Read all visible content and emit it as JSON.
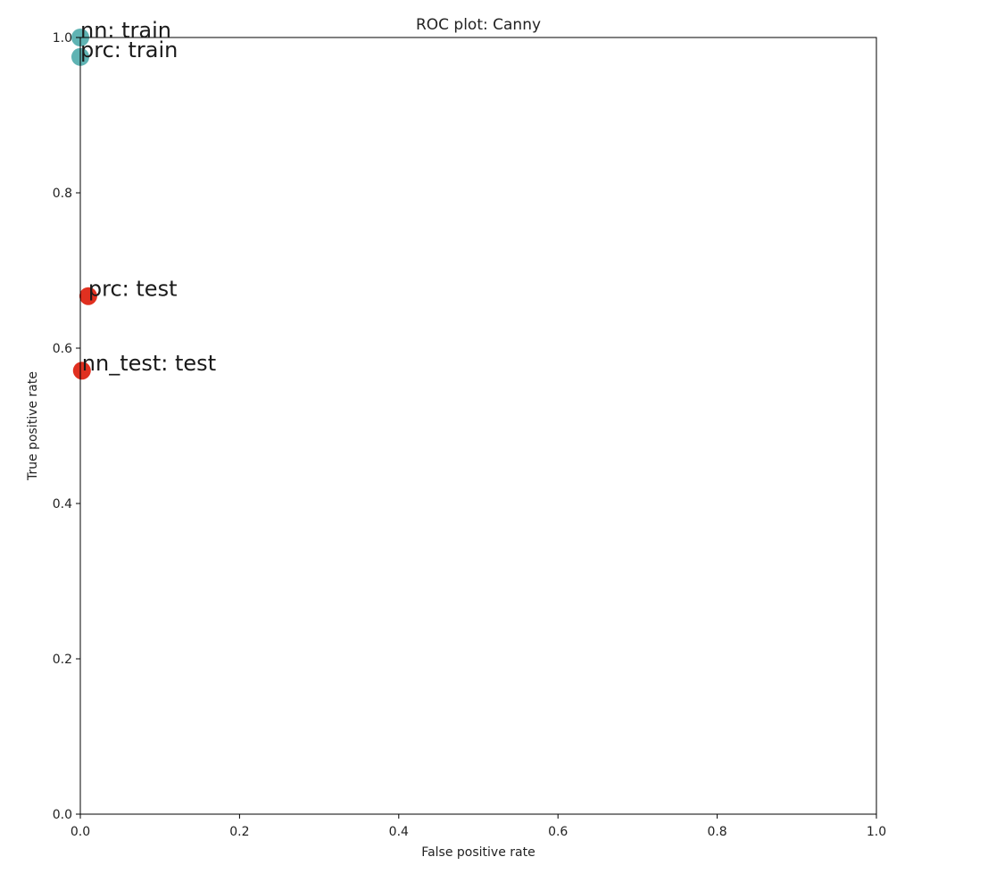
{
  "chart_data": {
    "type": "scatter",
    "title": "ROC plot: Canny",
    "xlabel": "False positive rate",
    "ylabel": "True positive rate",
    "xlim": [
      0.0,
      1.0
    ],
    "ylim": [
      0.0,
      1.0
    ],
    "xticks": [
      "0.0",
      "0.2",
      "0.4",
      "0.6",
      "0.8",
      "1.0"
    ],
    "yticks": [
      "0.0",
      "0.2",
      "0.4",
      "0.6",
      "0.8",
      "1.0"
    ],
    "grid": false,
    "points": [
      {
        "label": "nn: train",
        "x": 0.0,
        "y": 1.0,
        "color": "#5fb3b3"
      },
      {
        "label": "prc: train",
        "x": 0.0,
        "y": 0.975,
        "color": "#5fb3b3"
      },
      {
        "label": "prc: test",
        "x": 0.01,
        "y": 0.667,
        "color": "#e03020"
      },
      {
        "label": "nn_test: test",
        "x": 0.002,
        "y": 0.571,
        "color": "#e03020"
      }
    ]
  }
}
